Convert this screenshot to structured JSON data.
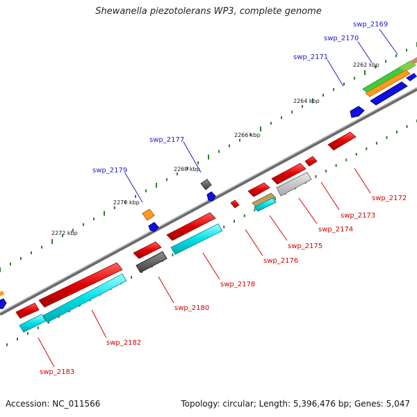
{
  "title": "Shewanella piezotolerans WP3, complete genome",
  "footer": {
    "accession": "Accession: NC_011566",
    "summary": "Topology: circular; Length: 5,396,476 bp; Genes: 5,047"
  },
  "scale_labels": [
    "2262 kbp",
    "2264 kbp",
    "2266 kbp",
    "2268 kbp",
    "2270 kbp",
    "2272 kbp"
  ],
  "gene_labels_top": [
    "swp_2169",
    "swp_2170",
    "swp_2171",
    "swp_2177",
    "swp_2179"
  ],
  "gene_labels_bottom": [
    "swp_2172",
    "swp_2173",
    "swp_2174",
    "swp_2175",
    "swp_2176",
    "swp_2178",
    "swp_2180",
    "swp_2182",
    "swp_2183"
  ],
  "colors": {
    "backbone": "#8a8a8a",
    "forward_gene": "#e00000",
    "reverse_gene": "#00e0e8",
    "small_gene": "#1010e0",
    "tick": "#2a7a2a",
    "label_top": "#1a1acc",
    "label_bottom": "#d40000"
  }
}
